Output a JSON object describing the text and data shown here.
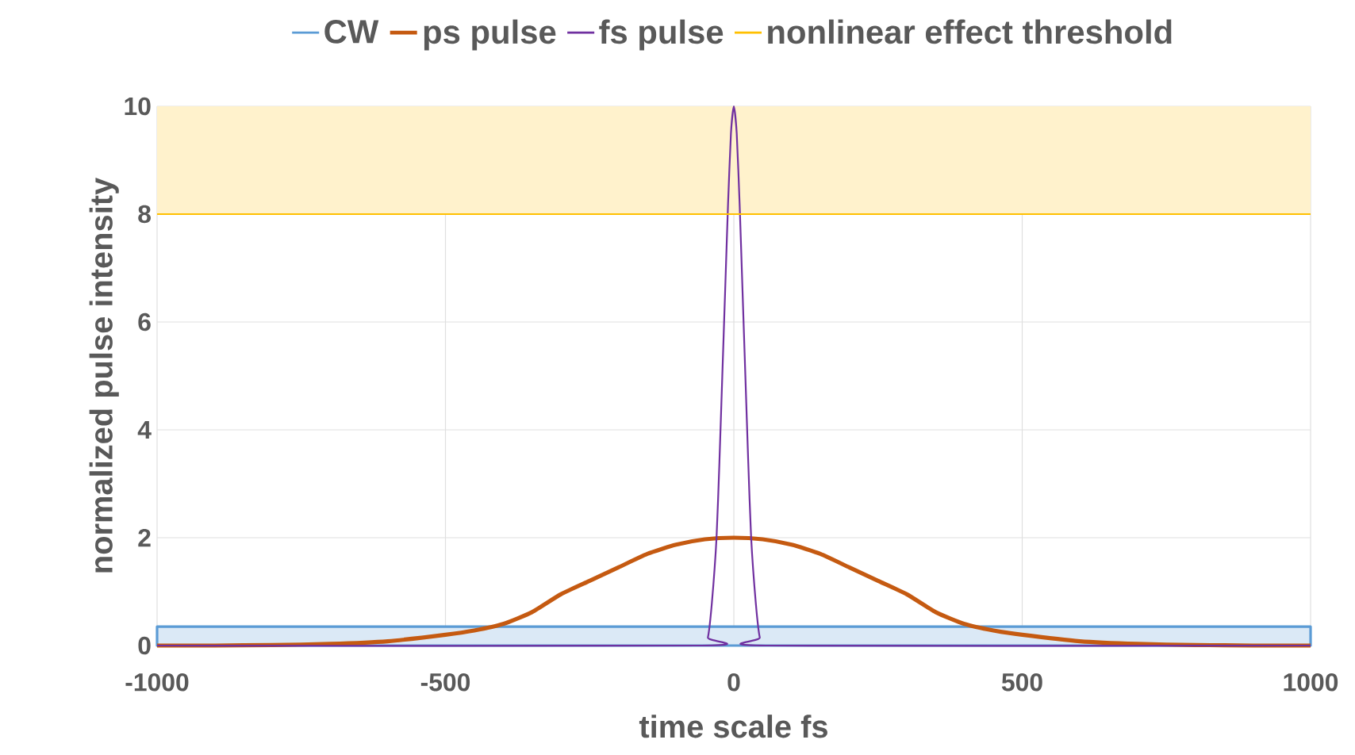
{
  "chart_data": {
    "type": "line",
    "xlabel": "time scale fs",
    "ylabel": "normalized pulse intensity",
    "xlim": [
      -1000,
      1000
    ],
    "ylim": [
      0,
      10
    ],
    "xticks": [
      -1000,
      -500,
      0,
      500,
      1000
    ],
    "yticks": [
      0,
      2,
      4,
      6,
      8,
      10
    ],
    "grid": true,
    "legend": "top",
    "series": [
      {
        "name": "CW",
        "type": "area",
        "color": "#5b9bd5",
        "x": [
          -1000,
          1000
        ],
        "values": [
          0.35,
          0.35
        ]
      },
      {
        "name": "ps pulse",
        "color": "#c55a11",
        "x": [
          -1000,
          -900,
          -800,
          -700,
          -600,
          -500,
          -450,
          -400,
          -350,
          -300,
          -250,
          -200,
          -150,
          -100,
          -50,
          0,
          50,
          100,
          150,
          200,
          250,
          300,
          350,
          400,
          450,
          500,
          600,
          700,
          800,
          900,
          1000
        ],
        "values": [
          0,
          0,
          0.01,
          0.03,
          0.08,
          0.2,
          0.28,
          0.4,
          0.62,
          0.95,
          1.2,
          1.45,
          1.7,
          1.87,
          1.97,
          2,
          1.97,
          1.87,
          1.7,
          1.45,
          1.2,
          0.95,
          0.62,
          0.4,
          0.28,
          0.2,
          0.08,
          0.03,
          0.01,
          0,
          0
        ]
      },
      {
        "name": "fs pulse",
        "color": "#7030a0",
        "x": [
          -1000,
          -55,
          -45,
          -38,
          -30,
          -25,
          -20,
          -15,
          -10,
          -5,
          0,
          5,
          10,
          15,
          20,
          25,
          30,
          38,
          45,
          55,
          1000
        ],
        "values": [
          0,
          0,
          0.15,
          0.8,
          2,
          3.4,
          5,
          6.6,
          8.2,
          9.5,
          10,
          9.5,
          8.2,
          6.6,
          5,
          3.4,
          2,
          0.8,
          0.15,
          0,
          0
        ]
      },
      {
        "name": "nonlinear effect threshold",
        "color": "#ffc000",
        "x": [
          -1000,
          1000
        ],
        "values": [
          8,
          8
        ]
      }
    ],
    "bands": [
      {
        "axis": "y",
        "from": 8,
        "to": 10,
        "color": "#fff2cc"
      }
    ]
  }
}
